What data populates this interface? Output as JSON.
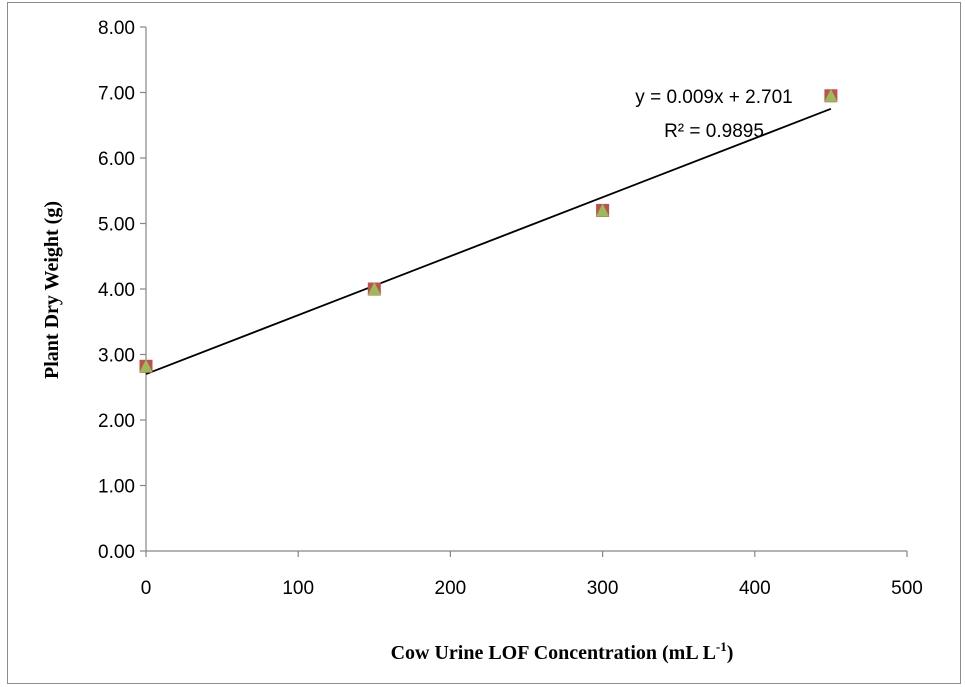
{
  "chart_data": {
    "type": "scatter",
    "x_title": "Cow Urine LOF Concentration (mL L",
    "x_title_sup": "-1",
    "x_title_close": ")",
    "y_title": "Plant Dry Weight (g)",
    "xlim": [
      0,
      500
    ],
    "ylim": [
      0,
      8
    ],
    "x_ticks": [
      "0",
      "100",
      "200",
      "300",
      "400",
      "500"
    ],
    "y_ticks": [
      "0.00",
      "1.00",
      "2.00",
      "3.00",
      "4.00",
      "5.00",
      "6.00",
      "7.00",
      "8.00"
    ],
    "series": [
      {
        "marker": "square",
        "color": "#c0504d",
        "x": [
          0,
          150,
          300,
          450
        ],
        "y": [
          2.82,
          4.0,
          5.2,
          6.95
        ]
      },
      {
        "marker": "triangle",
        "color": "#9bbb59",
        "x": [
          0,
          150,
          300,
          450
        ],
        "y": [
          2.82,
          4.0,
          5.2,
          6.95
        ]
      }
    ],
    "trendline": {
      "slope": 0.009,
      "intercept": 2.701,
      "x_range": [
        0,
        450
      ],
      "equation": "y = 0.009x + 2.701",
      "r_squared": "R² = 0.9895"
    },
    "grid": false,
    "legend": "none"
  }
}
